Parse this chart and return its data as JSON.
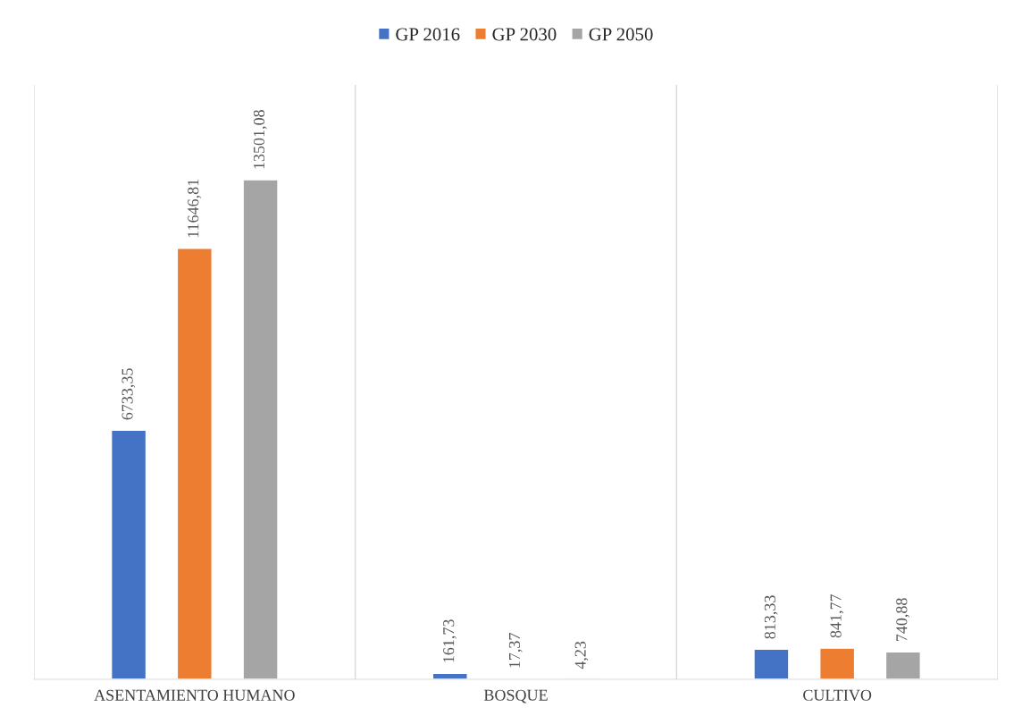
{
  "chart_data": {
    "type": "bar",
    "categories": [
      "ASENTAMIENTO HUMANO",
      "BOSQUE",
      "CULTIVO"
    ],
    "series": [
      {
        "name": "GP 2016",
        "color": "#4472c4",
        "values": [
          6733.35,
          161.73,
          813.33
        ],
        "value_labels": [
          "6733,35",
          "161,73",
          "813,33"
        ]
      },
      {
        "name": "GP 2030",
        "color": "#ed7d31",
        "values": [
          11646.81,
          17.37,
          841.77
        ],
        "value_labels": [
          "11646,81",
          "17,37",
          "841,77"
        ]
      },
      {
        "name": "GP 2050",
        "color": "#a5a5a5",
        "values": [
          13501.08,
          4.23,
          740.88
        ],
        "value_labels": [
          "13501,08",
          "4,23",
          "740,88"
        ]
      }
    ],
    "legend": "top",
    "grid": "x",
    "tick_labels": "x"
  }
}
